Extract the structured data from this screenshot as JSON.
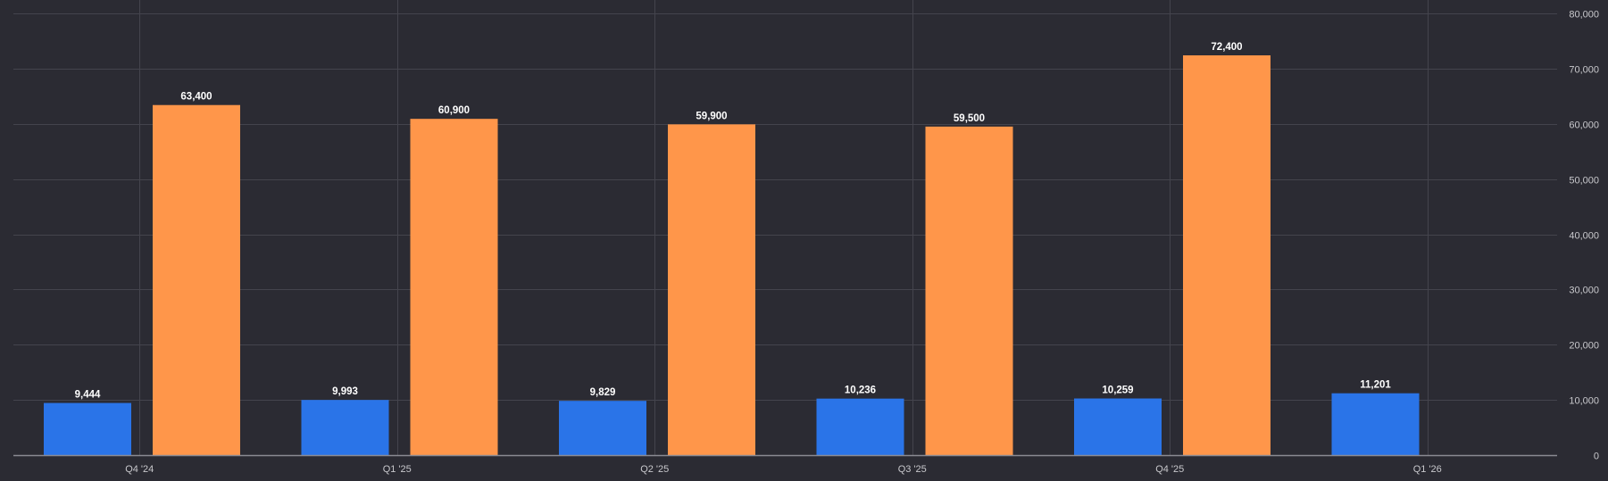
{
  "chart_data": {
    "type": "bar",
    "title": "",
    "xlabel": "",
    "ylabel": "",
    "categories": [
      "Q4 '24",
      "Q1 '25",
      "Q2 '25",
      "Q3 '25",
      "Q4 '25",
      "Q1 '26"
    ],
    "series": [
      {
        "color": "#2a74e8",
        "values": [
          9444,
          9993,
          9829,
          10236,
          10259,
          11201
        ],
        "labels": [
          "9,444",
          "9,993",
          "9,829",
          "10,236",
          "10,259",
          "11,201"
        ]
      },
      {
        "color": "#ff964a",
        "values": [
          63400,
          60900,
          59900,
          59500,
          72400,
          null
        ],
        "labels": [
          "63,400",
          "60,900",
          "59,900",
          "59,500",
          "72,400",
          ""
        ]
      }
    ],
    "ylim": [
      0,
      80000
    ],
    "yticks": [
      0,
      10000,
      20000,
      30000,
      40000,
      50000,
      60000,
      70000,
      80000
    ],
    "ytick_labels": [
      "0",
      "10,000",
      "20,000",
      "30,000",
      "40,000",
      "50,000",
      "60,000",
      "70,000",
      "80,000"
    ],
    "y_axis_position": "right",
    "grid": true,
    "legend": "none"
  },
  "colors": {
    "background": "#2b2b33",
    "grid": "#44444d",
    "axis": "#8a8a92",
    "tick_text": "#c8c8cc",
    "label_text": "#ffffff"
  }
}
